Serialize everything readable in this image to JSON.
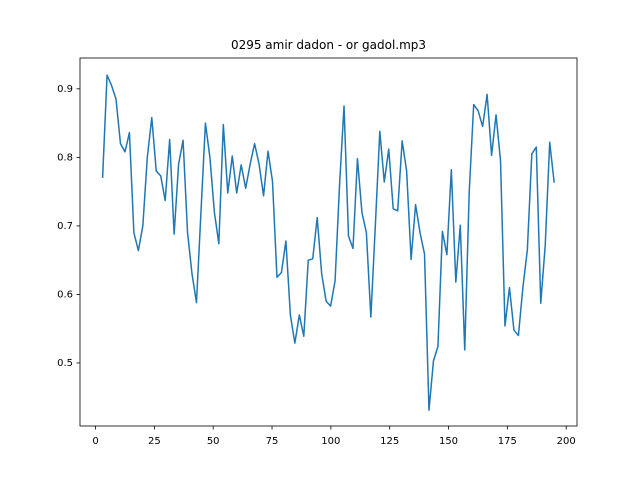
{
  "chart_data": {
    "type": "line",
    "title": "0295 amir dadon - or gadol.mp3",
    "x": [
      3,
      4.9,
      6.8,
      8.7,
      10.6,
      12.5,
      14.4,
      16.3,
      18.2,
      20.1,
      22,
      23.9,
      25.8,
      27.7,
      29.6,
      31.5,
      33.4,
      35.3,
      37.2,
      39.1,
      41,
      42.9,
      44.8,
      46.7,
      48.6,
      50.5,
      52.4,
      54.3,
      56.2,
      58.1,
      60,
      61.9,
      63.8,
      65.7,
      67.6,
      69.5,
      71.4,
      73.3,
      75.2,
      77.1,
      79,
      80.9,
      82.8,
      84.7,
      86.6,
      88.5,
      90.4,
      92.3,
      94.2,
      96.1,
      98,
      99.9,
      101.8,
      103.7,
      105.6,
      107.5,
      109.4,
      111.3,
      113.2,
      115.1,
      117,
      118.9,
      120.8,
      122.7,
      124.6,
      126.5,
      128.4,
      130.3,
      132.2,
      134.1,
      136,
      137.9,
      139.8,
      141.7,
      143.6,
      145.5,
      147.4,
      149.3,
      151.2,
      153.1,
      155,
      156.9,
      158.8,
      160.7,
      162.6,
      164.5,
      166.4,
      168.3,
      170.2,
      172.1,
      174,
      175.9,
      177.8,
      179.7,
      181.6,
      183.5,
      185.4,
      187.3,
      189.2,
      191.1,
      193,
      194.9
    ],
    "series": [
      {
        "color": "#1f77b4",
        "values": [
          0.77,
          0.92,
          0.905,
          0.885,
          0.82,
          0.808,
          0.836,
          0.69,
          0.664,
          0.7,
          0.8,
          0.858,
          0.78,
          0.773,
          0.737,
          0.826,
          0.688,
          0.79,
          0.825,
          0.69,
          0.63,
          0.588,
          0.72,
          0.85,
          0.8,
          0.72,
          0.674,
          0.848,
          0.748,
          0.802,
          0.748,
          0.789,
          0.755,
          0.79,
          0.82,
          0.79,
          0.744,
          0.809,
          0.765,
          0.625,
          0.632,
          0.678,
          0.57,
          0.529,
          0.57,
          0.539,
          0.65,
          0.652,
          0.712,
          0.63,
          0.59,
          0.583,
          0.62,
          0.76,
          0.875,
          0.685,
          0.667,
          0.798,
          0.72,
          0.69,
          0.567,
          0.7,
          0.838,
          0.764,
          0.812,
          0.725,
          0.722,
          0.824,
          0.78,
          0.651,
          0.731,
          0.69,
          0.659,
          0.431,
          0.503,
          0.524,
          0.692,
          0.658,
          0.782,
          0.618,
          0.701,
          0.519,
          0.75,
          0.877,
          0.868,
          0.845,
          0.892,
          0.803,
          0.862,
          0.795,
          0.554,
          0.61,
          0.548,
          0.54,
          0.61,
          0.665,
          0.805,
          0.815,
          0.587,
          0.672,
          0.822,
          0.763
        ]
      }
    ],
    "xlim": [
      -6.6,
      204.6
    ],
    "xticks": [
      0,
      25,
      50,
      75,
      100,
      125,
      150,
      175,
      200
    ],
    "ylim": [
      0.408,
      0.945
    ],
    "yticks": [
      0.5,
      0.6,
      0.7,
      0.8,
      0.9
    ],
    "grid": false
  }
}
